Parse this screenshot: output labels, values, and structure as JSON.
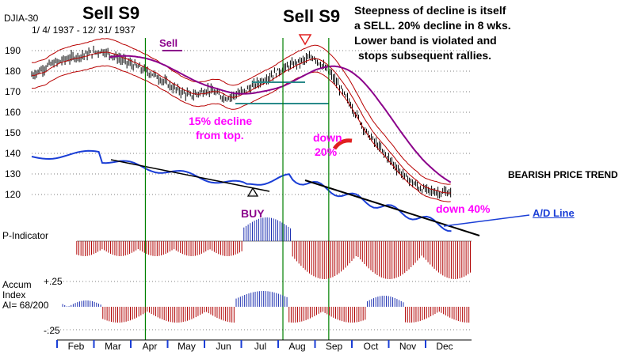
{
  "header": {
    "ticker": "DJIA-30",
    "date_range": "1/ 4/ 1937 - 12/ 31/ 1937"
  },
  "annotations": {
    "sell_s9_1": "Sell S9",
    "sell_s9_2": "Sell S9",
    "sell_small": "Sell",
    "commentary": [
      "Steepness of decline is itself",
      "a SELL.  20% decline in 8 wks.",
      "Lower band is violated and",
      "stops subsequent rallies."
    ],
    "decline_15": [
      "15% decline",
      "from top."
    ],
    "down_20": [
      "down",
      "20%"
    ],
    "down_40": "down 40%",
    "buy": "BUY",
    "bearish": "BEARISH PRICE TREND",
    "ad_line": "A/D Line"
  },
  "panels": {
    "p_indicator": "P-Indicator",
    "accum_index": [
      "Accum",
      "Index",
      "AI= 68/200"
    ],
    "accum_plus": "+.25",
    "accum_minus": "-.25"
  },
  "colors": {
    "price_bars": "#000000",
    "bands": "#b80000",
    "long_ma": "#8b008b",
    "ad_line": "#1a3ed6",
    "p_indicator_positive": "#1c2fb0",
    "p_indicator_negative": "#b00000",
    "signal_lines": "#008000",
    "magenta_text": "#ff00ff",
    "teal_line": "#2a8a8a",
    "down_arrow": "#e02020"
  },
  "chart_data": {
    "type": "line",
    "title": "DJIA-30",
    "x_ticks": [
      "Feb",
      "Mar",
      "Apr",
      "May",
      "Jun",
      "Jul",
      "Aug",
      "Sep",
      "Oct",
      "Nov",
      "Dec"
    ],
    "y_ticks": [
      190,
      180,
      170,
      160,
      150,
      140,
      130,
      120
    ],
    "ylim": [
      112,
      198
    ],
    "price_series": {
      "months": [
        0,
        0.5,
        1,
        1.5,
        2,
        2.5,
        3,
        3.5,
        4,
        4.5,
        5,
        5.5,
        6,
        6.5,
        7,
        7.5,
        8,
        8.5,
        9,
        9.5,
        10,
        10.5,
        11,
        11.5
      ],
      "values": [
        178,
        183,
        186,
        188,
        190,
        186,
        182,
        178,
        172,
        168,
        171,
        167,
        170,
        175,
        180,
        184,
        187,
        178,
        165,
        150,
        140,
        130,
        123,
        121
      ]
    },
    "signals": [
      {
        "label": "Sell S9",
        "month": 2.1
      },
      {
        "label": "BUY",
        "month": 6.0
      },
      {
        "label": "Sell S9",
        "month": 7.3
      }
    ]
  }
}
